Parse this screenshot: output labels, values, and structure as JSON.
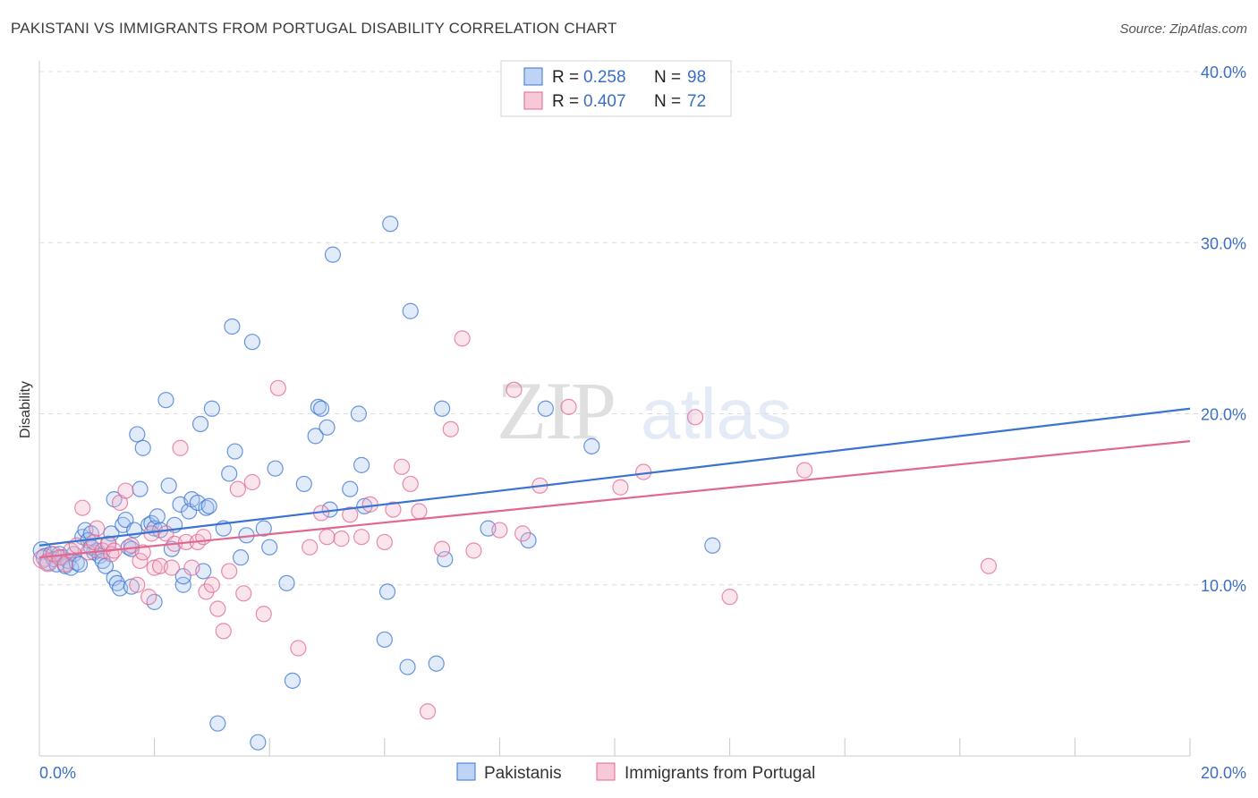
{
  "header": {
    "title": "PAKISTANI VS IMMIGRANTS FROM PORTUGAL DISABILITY CORRELATION CHART",
    "source": "Source: ZipAtlas.com"
  },
  "watermark": {
    "zip": "ZIP",
    "atlas": "atlas"
  },
  "colors": {
    "blue": "#3a74d0",
    "blue_fill": "#a9c6f0",
    "pink": "#e0678f",
    "pink_fill": "#f4b5ca",
    "tick_text": "#3b6fc6",
    "grid": "#dcdcdc"
  },
  "legend": {
    "rows": [
      {
        "r_label": "R = ",
        "r_value": "0.258",
        "n_label": "N = ",
        "n_value": "98"
      },
      {
        "r_label": "R = ",
        "r_value": "0.407",
        "n_label": "N = ",
        "n_value": "72"
      }
    ]
  },
  "chart_data": {
    "type": "scatter",
    "title": "PAKISTANI VS IMMIGRANTS FROM PORTUGAL DISABILITY CORRELATION CHART",
    "xlabel": "",
    "ylabel": "Disability",
    "xlim": [
      0,
      20
    ],
    "ylim": [
      0,
      40
    ],
    "x_tick_labels": [
      "0.0%",
      "20.0%"
    ],
    "y_tick_values": [
      10,
      20,
      30,
      40
    ],
    "y_tick_labels": [
      "10.0%",
      "20.0%",
      "30.0%",
      "40.0%"
    ],
    "grid": true,
    "legend_position": "top-center",
    "series": [
      {
        "name": "Pakistanis",
        "r": 0.258,
        "n": 98,
        "trend": {
          "x": [
            0,
            20
          ],
          "y": [
            12.3,
            20.3
          ]
        },
        "points": [
          [
            0.05,
            12.0
          ],
          [
            0.1,
            11.6
          ],
          [
            0.15,
            11.3
          ],
          [
            0.2,
            11.8
          ],
          [
            0.25,
            11.5
          ],
          [
            0.3,
            11.2
          ],
          [
            0.35,
            11.8
          ],
          [
            0.4,
            11.6
          ],
          [
            0.45,
            11.1
          ],
          [
            0.5,
            11.4
          ],
          [
            0.55,
            11.0
          ],
          [
            0.6,
            11.8
          ],
          [
            0.65,
            11.3
          ],
          [
            0.7,
            11.2
          ],
          [
            0.75,
            12.8
          ],
          [
            0.8,
            13.2
          ],
          [
            0.85,
            12.6
          ],
          [
            0.9,
            13.0
          ],
          [
            0.95,
            11.9
          ],
          [
            1.0,
            12.0
          ],
          [
            1.05,
            11.7
          ],
          [
            1.1,
            11.4
          ],
          [
            1.15,
            11.1
          ],
          [
            1.2,
            12.4
          ],
          [
            1.25,
            13.0
          ],
          [
            1.3,
            10.4
          ],
          [
            1.35,
            10.1
          ],
          [
            1.4,
            9.8
          ],
          [
            1.45,
            13.5
          ],
          [
            1.5,
            13.8
          ],
          [
            1.55,
            12.2
          ],
          [
            1.6,
            12.1
          ],
          [
            1.65,
            13.2
          ],
          [
            1.7,
            18.8
          ],
          [
            1.75,
            15.6
          ],
          [
            1.8,
            18.0
          ],
          [
            1.9,
            13.5
          ],
          [
            1.95,
            13.6
          ],
          [
            2.0,
            13.3
          ],
          [
            2.05,
            14.0
          ],
          [
            2.1,
            13.2
          ],
          [
            2.2,
            20.8
          ],
          [
            2.25,
            15.8
          ],
          [
            2.3,
            12.1
          ],
          [
            2.35,
            13.5
          ],
          [
            2.45,
            14.7
          ],
          [
            2.5,
            10.0
          ],
          [
            2.6,
            14.3
          ],
          [
            2.65,
            15.0
          ],
          [
            2.75,
            14.8
          ],
          [
            2.8,
            19.4
          ],
          [
            2.85,
            10.8
          ],
          [
            2.9,
            14.5
          ],
          [
            2.95,
            14.6
          ],
          [
            3.0,
            20.3
          ],
          [
            3.1,
            1.9
          ],
          [
            3.2,
            13.3
          ],
          [
            3.3,
            16.5
          ],
          [
            3.35,
            25.1
          ],
          [
            3.4,
            17.8
          ],
          [
            3.5,
            11.6
          ],
          [
            3.6,
            12.9
          ],
          [
            3.7,
            24.2
          ],
          [
            3.9,
            13.3
          ],
          [
            4.0,
            12.2
          ],
          [
            4.1,
            16.8
          ],
          [
            4.3,
            10.1
          ],
          [
            4.4,
            4.4
          ],
          [
            4.6,
            15.9
          ],
          [
            4.8,
            18.7
          ],
          [
            4.85,
            20.4
          ],
          [
            4.9,
            20.3
          ],
          [
            5.0,
            19.2
          ],
          [
            5.05,
            14.4
          ],
          [
            5.1,
            29.3
          ],
          [
            5.4,
            15.6
          ],
          [
            5.55,
            20.0
          ],
          [
            5.6,
            17.0
          ],
          [
            5.65,
            14.6
          ],
          [
            6.0,
            6.8
          ],
          [
            6.05,
            9.6
          ],
          [
            6.1,
            31.1
          ],
          [
            6.4,
            5.2
          ],
          [
            6.45,
            26.0
          ],
          [
            6.9,
            5.4
          ],
          [
            7.0,
            20.3
          ],
          [
            7.05,
            11.5
          ],
          [
            7.8,
            13.3
          ],
          [
            8.5,
            12.6
          ],
          [
            8.8,
            20.3
          ],
          [
            9.6,
            18.1
          ],
          [
            11.7,
            12.3
          ],
          [
            1.3,
            15.0
          ],
          [
            2.0,
            9.0
          ],
          [
            0.9,
            12.2
          ],
          [
            3.8,
            0.8
          ],
          [
            1.6,
            9.9
          ],
          [
            2.5,
            10.5
          ]
        ]
      },
      {
        "name": "Immigrants from Portugal",
        "r": 0.407,
        "n": 72,
        "trend": {
          "x": [
            0,
            20
          ],
          "y": [
            11.6,
            18.4
          ]
        },
        "points": [
          [
            0.05,
            11.5
          ],
          [
            0.15,
            11.3
          ],
          [
            0.25,
            11.8
          ],
          [
            0.35,
            11.6
          ],
          [
            0.45,
            11.2
          ],
          [
            0.55,
            12.0
          ],
          [
            0.65,
            12.3
          ],
          [
            0.75,
            14.5
          ],
          [
            0.85,
            11.9
          ],
          [
            0.95,
            12.5
          ],
          [
            1.0,
            13.3
          ],
          [
            1.1,
            12.0
          ],
          [
            1.2,
            12.4
          ],
          [
            1.25,
            11.8
          ],
          [
            1.3,
            12.0
          ],
          [
            1.4,
            14.8
          ],
          [
            1.5,
            15.5
          ],
          [
            1.6,
            12.3
          ],
          [
            1.7,
            10.0
          ],
          [
            1.75,
            11.4
          ],
          [
            1.8,
            11.9
          ],
          [
            1.9,
            9.3
          ],
          [
            1.95,
            13.0
          ],
          [
            2.0,
            11.0
          ],
          [
            2.1,
            11.1
          ],
          [
            2.2,
            13.0
          ],
          [
            2.3,
            11.0
          ],
          [
            2.35,
            12.4
          ],
          [
            2.45,
            18.0
          ],
          [
            2.55,
            12.5
          ],
          [
            2.65,
            11.0
          ],
          [
            2.75,
            12.5
          ],
          [
            2.85,
            12.8
          ],
          [
            2.9,
            9.6
          ],
          [
            3.0,
            10.0
          ],
          [
            3.1,
            8.6
          ],
          [
            3.2,
            7.3
          ],
          [
            3.3,
            10.8
          ],
          [
            3.45,
            15.6
          ],
          [
            3.55,
            9.5
          ],
          [
            3.7,
            16.0
          ],
          [
            3.9,
            8.3
          ],
          [
            4.15,
            21.5
          ],
          [
            4.5,
            6.3
          ],
          [
            4.7,
            12.2
          ],
          [
            4.9,
            14.2
          ],
          [
            5.0,
            12.8
          ],
          [
            5.25,
            12.7
          ],
          [
            5.4,
            14.1
          ],
          [
            5.6,
            12.8
          ],
          [
            5.75,
            14.7
          ],
          [
            6.0,
            12.5
          ],
          [
            6.15,
            14.4
          ],
          [
            6.3,
            16.9
          ],
          [
            6.45,
            15.9
          ],
          [
            6.6,
            14.3
          ],
          [
            6.75,
            2.6
          ],
          [
            7.0,
            12.1
          ],
          [
            7.15,
            19.1
          ],
          [
            7.35,
            24.4
          ],
          [
            7.55,
            12.0
          ],
          [
            8.0,
            13.2
          ],
          [
            8.25,
            21.4
          ],
          [
            8.4,
            13.0
          ],
          [
            8.7,
            15.8
          ],
          [
            9.2,
            20.4
          ],
          [
            10.1,
            15.7
          ],
          [
            10.5,
            16.6
          ],
          [
            11.4,
            19.8
          ],
          [
            12.0,
            9.3
          ],
          [
            13.3,
            16.7
          ],
          [
            16.5,
            11.1
          ]
        ]
      }
    ]
  },
  "bottom_legend": [
    "Pakistanis",
    "Immigrants from Portugal"
  ]
}
